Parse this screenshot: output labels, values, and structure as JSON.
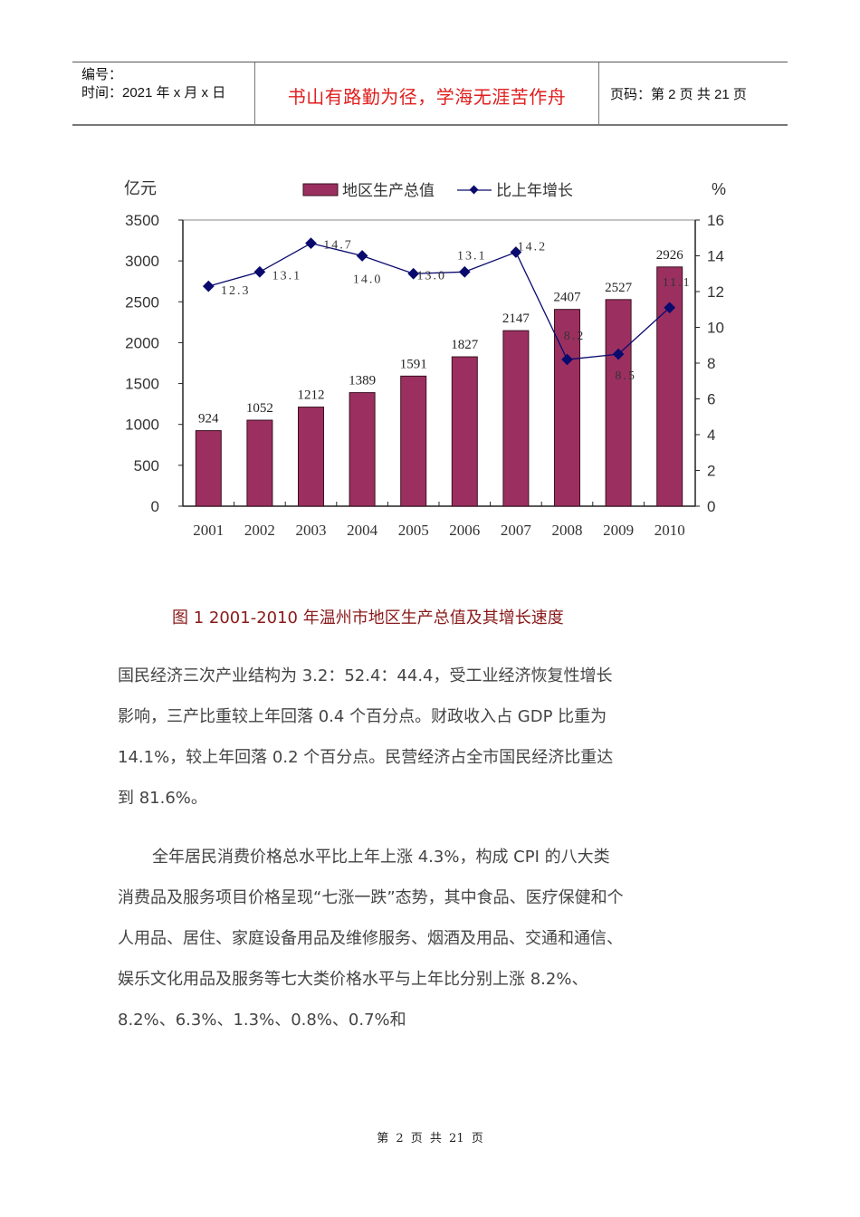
{
  "header": {
    "number_label": "编号：",
    "date_label": "时间：2021 年 x 月 x 日",
    "motto": "书山有路勤为径，学海无涯苦作舟",
    "page_label": "页码：第 2 页  共 21 页"
  },
  "chart_data": {
    "type": "bar",
    "title": "",
    "categories": [
      "2001",
      "2002",
      "2003",
      "2004",
      "2005",
      "2006",
      "2007",
      "2008",
      "2009",
      "2010"
    ],
    "series": [
      {
        "name": "地区生产总值",
        "kind": "bar",
        "axis": "left",
        "color": "#9b3060",
        "values": [
          924,
          1052,
          1212,
          1389,
          1591,
          1827,
          2147,
          2407,
          2527,
          2926
        ]
      },
      {
        "name": "比上年增长",
        "kind": "line",
        "axis": "right",
        "color": "#0a0a6e",
        "values": [
          12.3,
          13.1,
          14.7,
          14.0,
          13.0,
          13.1,
          14.2,
          8.2,
          8.5,
          11.1
        ]
      }
    ],
    "xlabel": "",
    "ylabel": "亿元",
    "y2label": "%",
    "ylim": [
      0,
      3500
    ],
    "y2lim": [
      0,
      16
    ],
    "yticks": [
      0,
      500,
      1000,
      1500,
      2000,
      2500,
      3000,
      3500
    ],
    "y2ticks": [
      0,
      2,
      4,
      6,
      8,
      10,
      12,
      14,
      16
    ],
    "legend_position": "top",
    "grid": false
  },
  "caption": "图 1  2001-2010 年温州市地区生产总值及其增长速度",
  "paragraphs": [
    "国民经济三次产业结构为 3.2：52.4：44.4，受工业经济恢复性增长影响，三产比重较上年回落 0.4 个百分点。财政收入占 GDP 比重为 14.1%，较上年回落 0.2 个百分点。民营经济占全市国民经济比重达到 81.6%。",
    "全年居民消费价格总水平比上年上涨 4.3%，构成 CPI 的八大类消费品及服务项目价格呈现“七涨一跌”态势，其中食品、医疗保健和个人用品、居住、家庭设备用品及维修服务、烟酒及用品、交通和通信、娱乐文化用品及服务等七大类价格水平与上年比分别上涨 8.2%、8.2%、6.3%、1.3%、0.8%、0.7%和"
  ],
  "footer": "第 2 页 共 21 页"
}
